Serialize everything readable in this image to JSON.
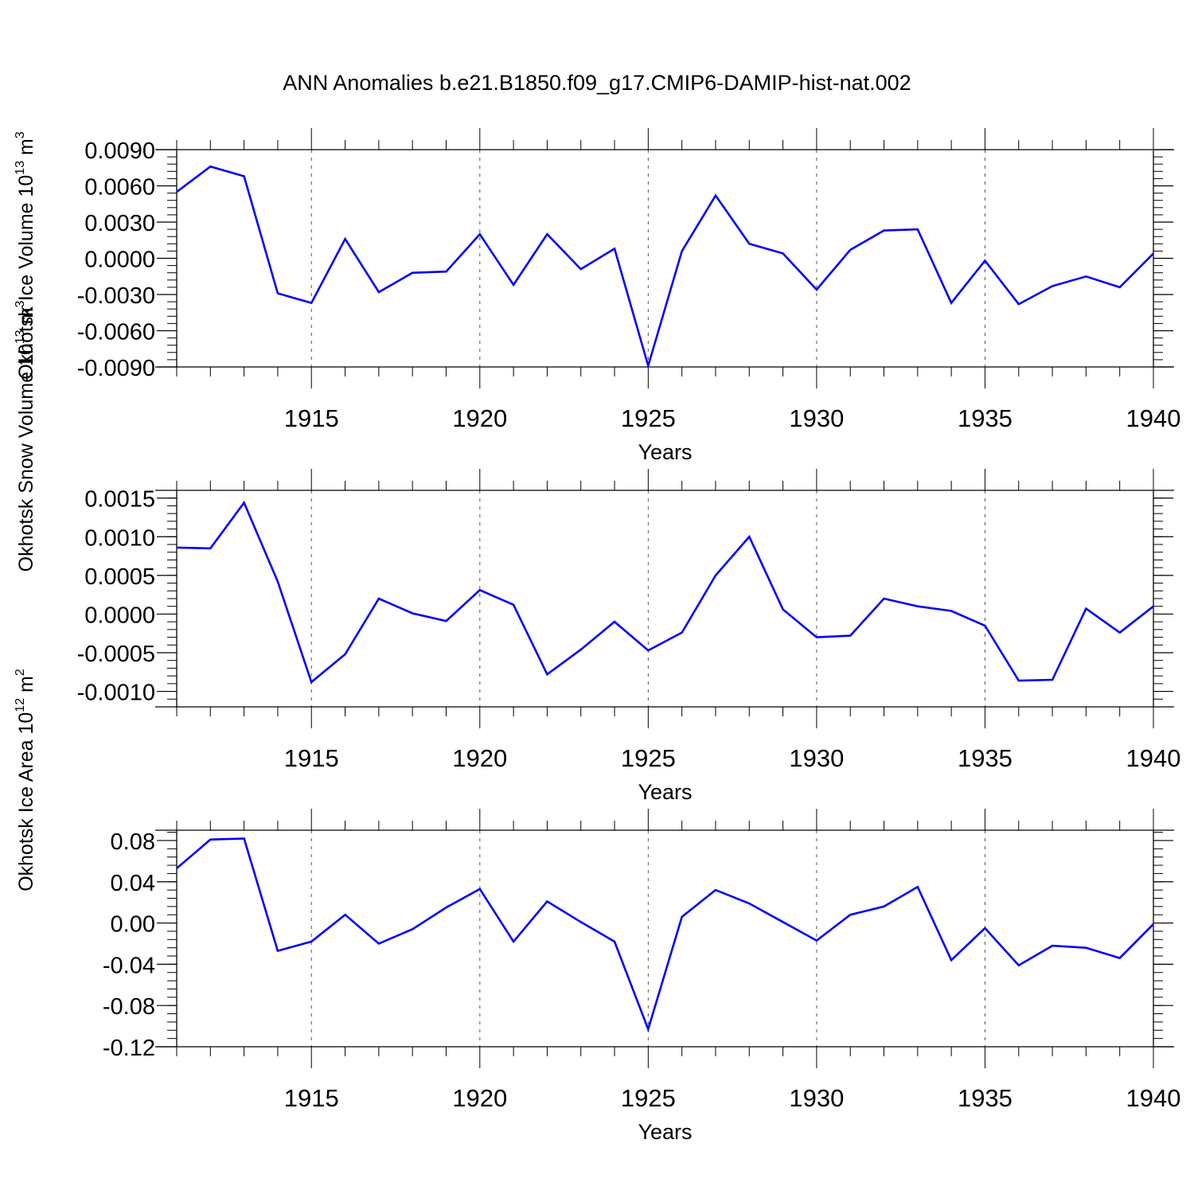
{
  "title": "ANN Anomalies b.e21.B1850.f09_g17.CMIP6-DAMIP-hist-nat.002",
  "line_color": "#0000ff",
  "chart_data": [
    {
      "type": "line",
      "ylabel_text": "Okhotsk Ice Volume 10",
      "ylabel_exp": "13",
      "ylabel_unit": "m",
      "ylabel_unit_exp": "3",
      "xlabel": "Years",
      "xlim": [
        1911,
        1940
      ],
      "ylim": [
        -0.009,
        0.009
      ],
      "yticks": [
        -0.009,
        -0.006,
        -0.003,
        0.0,
        0.003,
        0.006,
        0.009
      ],
      "ytick_labels": [
        "-0.0090",
        "-0.0060",
        "-0.0030",
        "0.0000",
        "0.0030",
        "0.0060",
        "0.0090"
      ],
      "xticks": [
        1915,
        1920,
        1925,
        1930,
        1935,
        1940
      ],
      "xtick_labels": [
        "1915",
        "1920",
        "1925",
        "1930",
        "1935",
        "1940"
      ],
      "x": [
        1911,
        1912,
        1913,
        1914,
        1915,
        1916,
        1917,
        1918,
        1919,
        1920,
        1921,
        1922,
        1923,
        1924,
        1925,
        1926,
        1927,
        1928,
        1929,
        1930,
        1931,
        1932,
        1933,
        1934,
        1935,
        1936,
        1937,
        1938,
        1939,
        1940
      ],
      "values": [
        0.0055,
        0.0076,
        0.0068,
        -0.0029,
        -0.0037,
        0.0016,
        -0.0028,
        -0.0012,
        -0.0011,
        0.002,
        -0.0022,
        0.002,
        -0.0009,
        0.0008,
        -0.0089,
        0.0006,
        0.0052,
        0.0012,
        0.0004,
        -0.0026,
        0.0007,
        0.0023,
        0.0024,
        -0.0037,
        -0.0002,
        -0.0038,
        -0.0023,
        -0.0015,
        -0.0024,
        0.0004
      ]
    },
    {
      "type": "line",
      "ylabel_text": "Okhotsk Snow Volume 10",
      "ylabel_exp": "13",
      "ylabel_unit": "m",
      "ylabel_unit_exp": "3",
      "xlabel": "Years",
      "xlim": [
        1911,
        1940
      ],
      "ylim": [
        -0.0012,
        0.0016
      ],
      "yticks": [
        -0.001,
        -0.0005,
        0.0,
        0.0005,
        0.001,
        0.0015
      ],
      "ytick_labels": [
        "-0.0010",
        "-0.0005",
        "0.0000",
        "0.0005",
        "0.0010",
        "0.0015"
      ],
      "xticks": [
        1915,
        1920,
        1925,
        1930,
        1935,
        1940
      ],
      "xtick_labels": [
        "1915",
        "1920",
        "1925",
        "1930",
        "1935",
        "1940"
      ],
      "x": [
        1911,
        1912,
        1913,
        1914,
        1915,
        1916,
        1917,
        1918,
        1919,
        1920,
        1921,
        1922,
        1923,
        1924,
        1925,
        1926,
        1927,
        1928,
        1929,
        1930,
        1931,
        1932,
        1933,
        1934,
        1935,
        1936,
        1937,
        1938,
        1939,
        1940
      ],
      "values": [
        0.00086,
        0.00085,
        0.00144,
        0.00042,
        -0.00088,
        -0.00052,
        0.0002,
        1e-05,
        -9e-05,
        0.00031,
        0.00012,
        -0.00078,
        -0.00046,
        -0.0001,
        -0.00047,
        -0.00024,
        0.0005,
        0.001,
        6e-05,
        -0.0003,
        -0.00028,
        0.0002,
        0.0001,
        4e-05,
        -0.00015,
        -0.00086,
        -0.00085,
        7e-05,
        -0.00024,
        0.0001
      ]
    },
    {
      "type": "line",
      "ylabel_text": "Okhotsk Ice Area 10",
      "ylabel_exp": "12",
      "ylabel_unit": "m",
      "ylabel_unit_exp": "2",
      "xlabel": "Years",
      "xlim": [
        1911,
        1940
      ],
      "ylim": [
        -0.12,
        0.09
      ],
      "yticks": [
        -0.12,
        -0.08,
        -0.04,
        0.0,
        0.04,
        0.08
      ],
      "ytick_labels": [
        "-0.12",
        "-0.08",
        "-0.04",
        "0.00",
        "0.04",
        "0.08"
      ],
      "xticks": [
        1915,
        1920,
        1925,
        1930,
        1935,
        1940
      ],
      "xtick_labels": [
        "1915",
        "1920",
        "1925",
        "1930",
        "1935",
        "1940"
      ],
      "x": [
        1911,
        1912,
        1913,
        1914,
        1915,
        1916,
        1917,
        1918,
        1919,
        1920,
        1921,
        1922,
        1923,
        1924,
        1925,
        1926,
        1927,
        1928,
        1929,
        1930,
        1931,
        1932,
        1933,
        1934,
        1935,
        1936,
        1937,
        1938,
        1939,
        1940
      ],
      "values": [
        0.053,
        0.081,
        0.082,
        -0.027,
        -0.018,
        0.008,
        -0.02,
        -0.006,
        0.015,
        0.033,
        -0.018,
        0.021,
        0.001,
        -0.018,
        -0.103,
        0.006,
        0.032,
        0.019,
        0.001,
        -0.017,
        0.008,
        0.016,
        0.035,
        -0.036,
        -0.005,
        -0.041,
        -0.022,
        -0.024,
        -0.034,
        -0.001
      ]
    }
  ]
}
